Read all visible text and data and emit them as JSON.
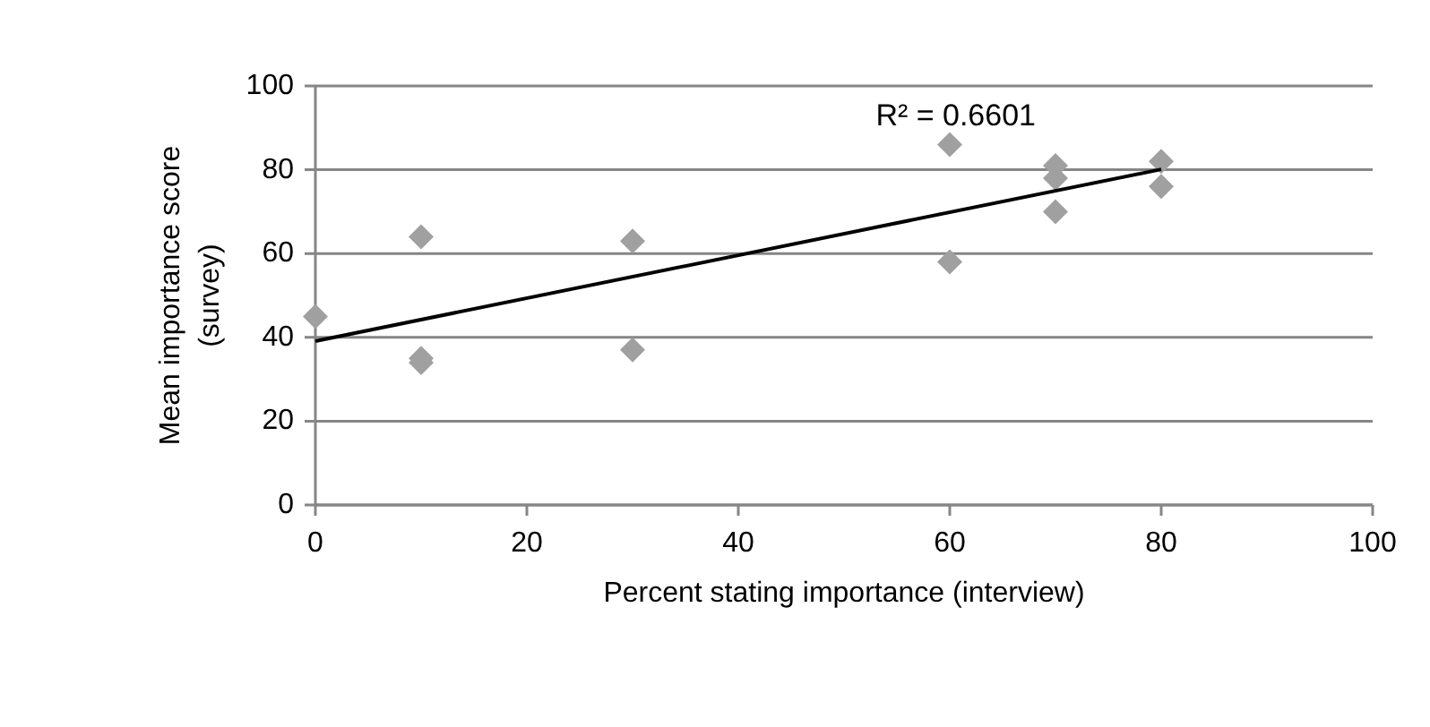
{
  "chart_data": {
    "type": "scatter",
    "xlabel": "Percent stating importance (interview)",
    "ylabel": "Mean importance score\n(survey)",
    "xlim": [
      0,
      100
    ],
    "xticks": [
      0,
      20,
      40,
      60,
      80,
      100
    ],
    "ylim": [
      0,
      100
    ],
    "yticks": [
      0,
      20,
      40,
      60,
      80,
      100
    ],
    "grid": "y",
    "marker": "diamond",
    "annotations": [
      "R² = 0.6601"
    ],
    "series": [
      {
        "color": "#a0a0a0",
        "x": [
          0,
          10,
          10,
          10,
          30,
          30,
          60,
          60,
          70,
          70,
          70,
          80,
          80
        ],
        "values": [
          45,
          64,
          35,
          34,
          63,
          37,
          86,
          58,
          81,
          78,
          70,
          82,
          76
        ]
      },
      {
        "type": "line",
        "color": "#000000",
        "x": [
          0,
          80
        ],
        "values": [
          39.1,
          80.1
        ],
        "line_style": "solid",
        "marker": "none"
      }
    ]
  }
}
